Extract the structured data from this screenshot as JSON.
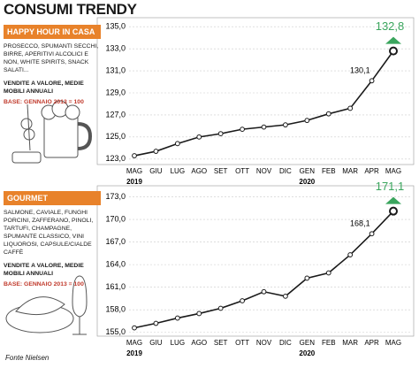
{
  "title": "CONSUMI TRENDY",
  "source": "Fonte Nielsen",
  "chart_data": [
    {
      "type": "line",
      "title": "HAPPY HOUR IN CASA",
      "description": "PROSECCO, SPUMANTI SECCHI, BIRRE, APERITIVI ALCOLICI E NON, WHITE SPIRITS, SNACK SALATI...",
      "measure": "VENDITE A VALORE, MEDIE MOBILI ANNUALI",
      "base": "BASE: GENNAIO 2013 = 100",
      "categories": [
        "MAG",
        "GIU",
        "LUG",
        "AGO",
        "SET",
        "OTT",
        "NOV",
        "DIC",
        "GEN",
        "FEB",
        "MAR",
        "APR",
        "MAG"
      ],
      "years": [
        "2019",
        null,
        null,
        null,
        null,
        null,
        null,
        null,
        "2020",
        null,
        null,
        null,
        null
      ],
      "values": [
        123.3,
        123.7,
        124.4,
        125.0,
        125.3,
        125.7,
        125.9,
        126.1,
        126.5,
        127.1,
        127.6,
        130.1,
        132.8
      ],
      "value_labels": [
        null,
        null,
        null,
        null,
        null,
        null,
        null,
        null,
        null,
        null,
        null,
        "130,1",
        "132,8"
      ],
      "color": "#1a1a1a",
      "highlight_color": "#3aa55d",
      "ylim": [
        122.5,
        135.5
      ],
      "yticks": [
        {
          "value": 123,
          "label": "123,0"
        },
        {
          "value": 125,
          "label": "125,0"
        },
        {
          "value": 127,
          "label": "127,0"
        },
        {
          "value": 129,
          "label": "129,0"
        },
        {
          "value": 131,
          "label": "131,0"
        },
        {
          "value": 133,
          "label": "133,0"
        },
        {
          "value": 135,
          "label": "135,0"
        }
      ],
      "grid": true
    },
    {
      "type": "line",
      "title": "GOURMET",
      "description": "SALMONE, CAVIALE, FUNGHI PORCINI, ZAFFERANO, PINOLI, TARTUFI, CHAMPAGNE, SPUMANTE CLASSICO, VINI LIQUOROSI, CAPSULE/CIALDE CAFFÈ",
      "measure": "VENDITE A VALORE, MEDIE MOBILI ANNUALI",
      "base": "BASE: GENNAIO 2013 = 100",
      "categories": [
        "MAG",
        "GIU",
        "LUG",
        "AGO",
        "SET",
        "OTT",
        "NOV",
        "DIC",
        "GEN",
        "FEB",
        "MAR",
        "APR",
        "MAG"
      ],
      "years": [
        "2019",
        null,
        null,
        null,
        null,
        null,
        null,
        null,
        "2020",
        null,
        null,
        null,
        null
      ],
      "values": [
        155.6,
        156.2,
        156.9,
        157.5,
        158.2,
        159.2,
        160.4,
        159.8,
        162.2,
        162.9,
        165.3,
        168.1,
        171.1
      ],
      "value_labels": [
        null,
        null,
        null,
        null,
        null,
        null,
        null,
        null,
        null,
        null,
        null,
        "168,1",
        "171,1"
      ],
      "color": "#1a1a1a",
      "highlight_color": "#3aa55d",
      "ylim": [
        154.5,
        174
      ],
      "yticks": [
        {
          "value": 155,
          "label": "155,0"
        },
        {
          "value": 158,
          "label": "158,0"
        },
        {
          "value": 161,
          "label": "161,0"
        },
        {
          "value": 164,
          "label": "164,0"
        },
        {
          "value": 167,
          "label": "167,0"
        },
        {
          "value": 170,
          "label": "170,0"
        },
        {
          "value": 173,
          "label": "173,0"
        }
      ],
      "grid": true
    }
  ]
}
